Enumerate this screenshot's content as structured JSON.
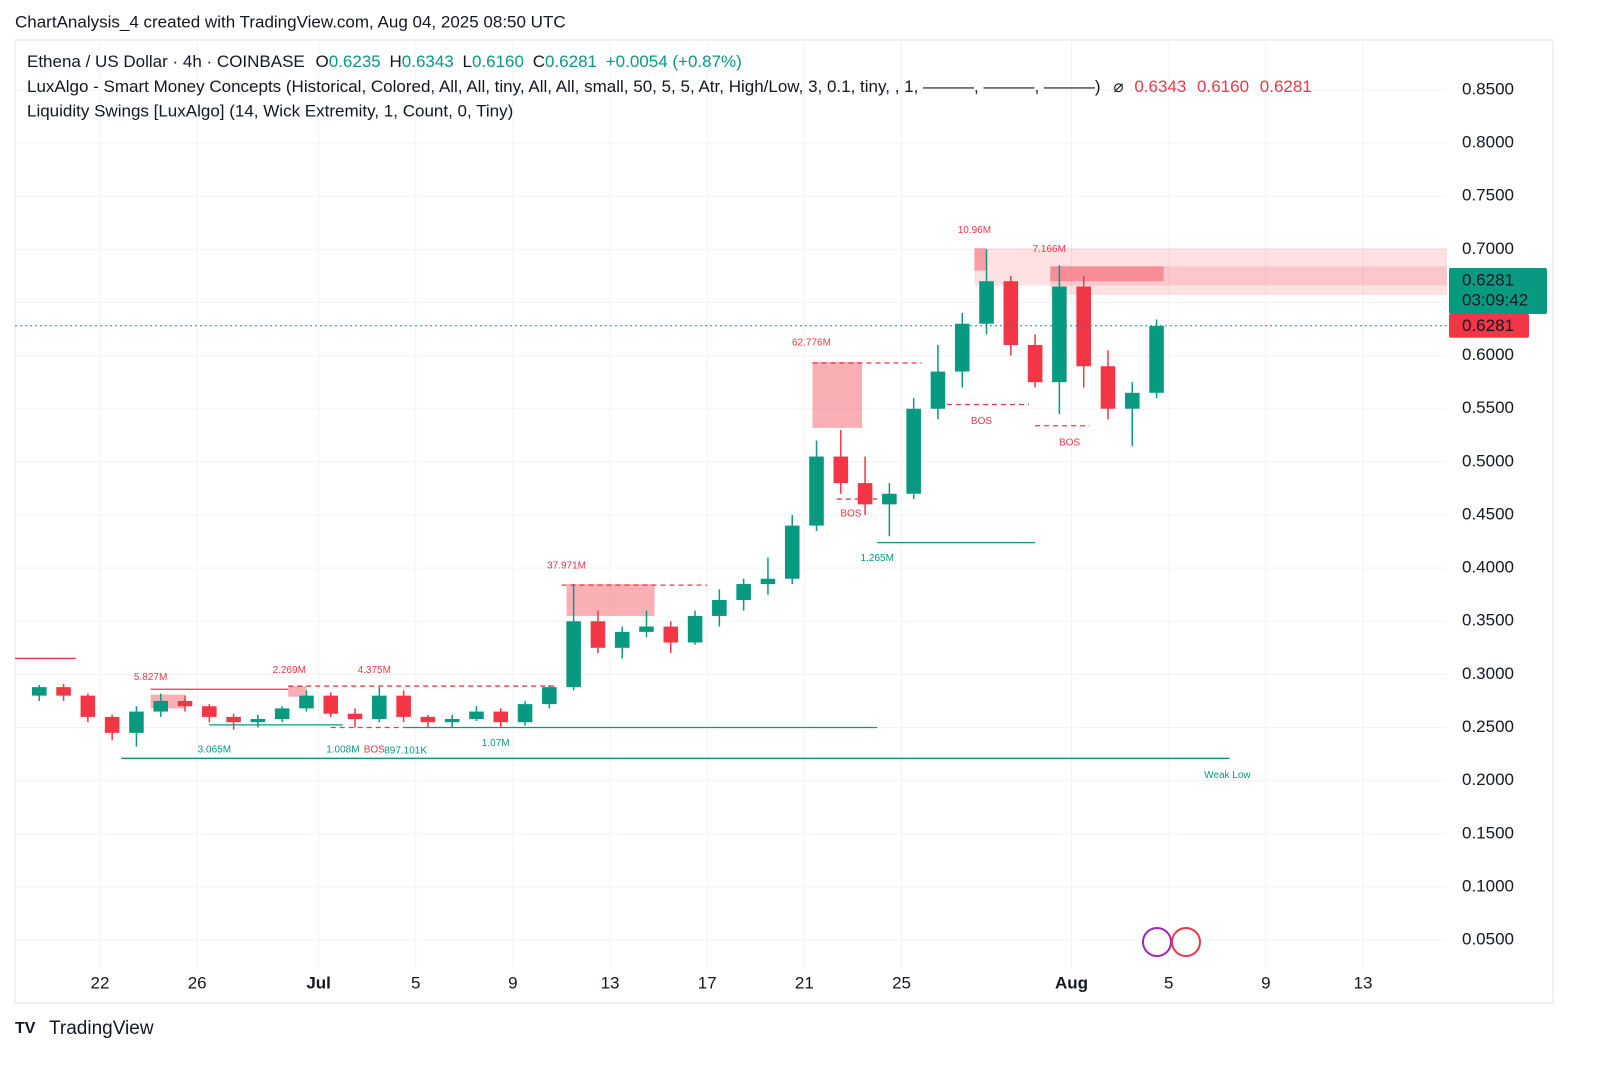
{
  "header": {
    "title": "ChartAnalysis_4 created with TradingView.com, Aug 04, 2025 08:50 UTC",
    "symbol": "Ethena / US Dollar · 4h · COINBASE",
    "ohlc": [
      {
        "label": "O",
        "value": "0.6235"
      },
      {
        "label": "H",
        "value": "0.6343"
      },
      {
        "label": "L",
        "value": "0.6160"
      },
      {
        "label": "C",
        "value": "0.6281"
      }
    ],
    "change": "+0.0054 (+0.87%)",
    "indicator_1": "LuxAlgo - Smart Money Concepts (Historical, Colored, All, All, tiny, All, All, small, 50, 5, 5, Atr, High/Low, 3, 0.1, tiny, , 1, ———, ———, ———)",
    "indicator_1_symbol": "⌀",
    "indicator_1_values": [
      "0.6343",
      "0.6160",
      "0.6281"
    ],
    "indicator_2": "Liquidity Swings [LuxAlgo] (14, Wick Extremity, 1, Count, 0, Tiny)",
    "footer": "TradingView"
  },
  "chart_data": {
    "type": "candlestick",
    "x": [
      "2025-06-19",
      "2025-06-20",
      "2025-06-21",
      "2025-06-22",
      "2025-06-23",
      "2025-06-24",
      "2025-06-25",
      "2025-06-26",
      "2025-06-27",
      "2025-06-28",
      "2025-06-29",
      "2025-06-30",
      "2025-07-01",
      "2025-07-02",
      "2025-07-03",
      "2025-07-04",
      "2025-07-05",
      "2025-07-06",
      "2025-07-07",
      "2025-07-08",
      "2025-07-09",
      "2025-07-10",
      "2025-07-11",
      "2025-07-12",
      "2025-07-13",
      "2025-07-14",
      "2025-07-15",
      "2025-07-16",
      "2025-07-17",
      "2025-07-18",
      "2025-07-19",
      "2025-07-20",
      "2025-07-21",
      "2025-07-22",
      "2025-07-23",
      "2025-07-24",
      "2025-07-25",
      "2025-07-26",
      "2025-07-27",
      "2025-07-28",
      "2025-07-29",
      "2025-07-30",
      "2025-07-31",
      "2025-08-01",
      "2025-08-02",
      "2025-08-03",
      "2025-08-04"
    ],
    "open": [
      0.28,
      0.288,
      0.28,
      0.26,
      0.245,
      0.265,
      0.275,
      0.27,
      0.26,
      0.255,
      0.258,
      0.268,
      0.28,
      0.263,
      0.258,
      0.28,
      0.26,
      0.255,
      0.258,
      0.265,
      0.255,
      0.272,
      0.288,
      0.35,
      0.325,
      0.34,
      0.345,
      0.33,
      0.355,
      0.37,
      0.385,
      0.39,
      0.44,
      0.505,
      0.48,
      0.46,
      0.47,
      0.55,
      0.585,
      0.63,
      0.67,
      0.61,
      0.575,
      0.665,
      0.59,
      0.55,
      0.565
    ],
    "high": [
      0.29,
      0.291,
      0.282,
      0.262,
      0.27,
      0.282,
      0.28,
      0.272,
      0.263,
      0.262,
      0.27,
      0.285,
      0.283,
      0.268,
      0.288,
      0.285,
      0.262,
      0.262,
      0.27,
      0.268,
      0.275,
      0.29,
      0.385,
      0.36,
      0.345,
      0.36,
      0.35,
      0.36,
      0.38,
      0.39,
      0.41,
      0.45,
      0.52,
      0.53,
      0.505,
      0.48,
      0.56,
      0.61,
      0.64,
      0.7,
      0.675,
      0.62,
      0.685,
      0.675,
      0.605,
      0.575,
      0.634
    ],
    "low": [
      0.275,
      0.275,
      0.255,
      0.238,
      0.232,
      0.26,
      0.265,
      0.255,
      0.248,
      0.25,
      0.255,
      0.265,
      0.26,
      0.25,
      0.255,
      0.255,
      0.25,
      0.25,
      0.256,
      0.25,
      0.252,
      0.268,
      0.285,
      0.32,
      0.315,
      0.335,
      0.32,
      0.328,
      0.345,
      0.36,
      0.375,
      0.385,
      0.435,
      0.47,
      0.45,
      0.43,
      0.465,
      0.54,
      0.57,
      0.62,
      0.6,
      0.57,
      0.545,
      0.57,
      0.54,
      0.515,
      0.56
    ],
    "close": [
      0.288,
      0.28,
      0.26,
      0.245,
      0.265,
      0.275,
      0.27,
      0.26,
      0.255,
      0.258,
      0.268,
      0.28,
      0.263,
      0.258,
      0.28,
      0.26,
      0.255,
      0.258,
      0.265,
      0.255,
      0.272,
      0.288,
      0.35,
      0.325,
      0.34,
      0.345,
      0.33,
      0.355,
      0.37,
      0.385,
      0.39,
      0.44,
      0.505,
      0.48,
      0.46,
      0.47,
      0.55,
      0.585,
      0.63,
      0.67,
      0.61,
      0.575,
      0.665,
      0.59,
      0.55,
      0.565,
      0.628
    ],
    "up_color": "#089981",
    "down_color": "#f23645",
    "xlim": [
      "2025-06-18T12:00",
      "2025-08-16T11:00"
    ],
    "xticks": [
      {
        "value": "2025-06-22",
        "label": "22"
      },
      {
        "value": "2025-06-26",
        "label": "26"
      },
      {
        "value": "2025-07-01",
        "label": "Jul"
      },
      {
        "value": "2025-07-05",
        "label": "5"
      },
      {
        "value": "2025-07-09",
        "label": "9"
      },
      {
        "value": "2025-07-13",
        "label": "13"
      },
      {
        "value": "2025-07-17",
        "label": "17"
      },
      {
        "value": "2025-07-21",
        "label": "21"
      },
      {
        "value": "2025-07-25",
        "label": "25"
      },
      {
        "value": "2025-08-01",
        "label": "Aug"
      },
      {
        "value": "2025-08-05",
        "label": "5"
      },
      {
        "value": "2025-08-09",
        "label": "9"
      },
      {
        "value": "2025-08-13",
        "label": "13"
      }
    ],
    "ylim": [
      0.0218,
      0.897
    ],
    "yticks": [
      {
        "value": 0.05,
        "label": "0.0500"
      },
      {
        "value": 0.1,
        "label": "0.1000"
      },
      {
        "value": 0.15,
        "label": "0.1500"
      },
      {
        "value": 0.2,
        "label": "0.2000"
      },
      {
        "value": 0.25,
        "label": "0.2500"
      },
      {
        "value": 0.3,
        "label": "0.3000"
      },
      {
        "value": 0.35,
        "label": "0.3500"
      },
      {
        "value": 0.4,
        "label": "0.4000"
      },
      {
        "value": 0.45,
        "label": "0.4500"
      },
      {
        "value": 0.5,
        "label": "0.5000"
      },
      {
        "value": 0.55,
        "label": "0.5500"
      },
      {
        "value": 0.6,
        "label": "0.6000"
      },
      {
        "value": 0.65,
        "label": "0.6500"
      },
      {
        "value": 0.7,
        "label": "0.7000"
      },
      {
        "value": 0.75,
        "label": "0.7500"
      },
      {
        "value": 0.8,
        "label": "0.8000"
      },
      {
        "value": 0.85,
        "label": "0.8500"
      }
    ],
    "grid": true,
    "last_price": 0.6281,
    "countdown": "03:09:42",
    "zones": [
      {
        "x0": "2025-06-24T02:00",
        "x1": "2025-06-25T12:00",
        "top": 0.281,
        "bottom": 0.268,
        "color": "rgba(242,54,69,0.4)"
      },
      {
        "x0": "2025-06-29T18:00",
        "x1": "2025-06-30T12:00",
        "top": 0.289,
        "bottom": 0.279,
        "color": "rgba(242,54,69,0.4)"
      },
      {
        "x0": "2025-07-11T05:00",
        "x1": "2025-07-14T20:00",
        "top": 0.385,
        "bottom": 0.355,
        "color": "rgba(242,54,69,0.4)"
      },
      {
        "x0": "2025-07-21T08:00",
        "x1": "2025-07-23T09:00",
        "top": 0.594,
        "bottom": 0.532,
        "color": "rgba(242,54,69,0.4)"
      },
      {
        "x0": "2025-07-28T00:00",
        "x1": "2025-08-16T11:00",
        "top": 0.701,
        "bottom": 0.666,
        "color": "rgba(242,54,69,0.15)"
      },
      {
        "x0": "2025-07-31T03:00",
        "x1": "2025-08-16T11:00",
        "top": 0.684,
        "bottom": 0.657,
        "color": "rgba(242,54,69,0.15)"
      },
      {
        "x0": "2025-07-28T00:00",
        "x1": "2025-07-28T12:00",
        "top": 0.701,
        "bottom": 0.68,
        "color": "rgba(242,54,69,0.4)"
      },
      {
        "x0": "2025-07-31T03:00",
        "x1": "2025-08-04T19:00",
        "top": 0.684,
        "bottom": 0.67,
        "color": "rgba(242,54,69,0.4)"
      }
    ],
    "levels": [
      {
        "x0": "2025-06-22T21:00",
        "x1": "2025-08-07T12:00",
        "price": 0.221,
        "color": "#089981",
        "dash": false
      },
      {
        "x0": "2025-07-04T15:00",
        "x1": "2025-07-24T00:00",
        "price": 0.25,
        "color": "#089981",
        "dash": false
      },
      {
        "x0": "2025-07-24T00:00",
        "x1": "2025-07-30T12:00",
        "price": 0.424,
        "color": "#089981",
        "dash": false
      },
      {
        "x0": "2025-06-26T12:00",
        "x1": "2025-07-02T00:00",
        "price": 0.2525,
        "color": "#089981",
        "dash": false
      },
      {
        "x0": "2025-06-18T12:00",
        "x1": "2025-06-21T00:00",
        "price": 0.315,
        "color": "#f23645",
        "dash": false
      },
      {
        "x0": "2025-06-24T02:00",
        "x1": "2025-06-29T18:00",
        "price": 0.286,
        "color": "#f23645",
        "dash": false
      },
      {
        "x0": "2025-06-29T18:00",
        "x1": "2025-07-10T18:00",
        "price": 0.289,
        "color": "#f23645",
        "dash": true
      },
      {
        "x0": "2025-07-11T00:00",
        "x1": "2025-07-17T00:00",
        "price": 0.384,
        "color": "#f23645",
        "dash": true
      },
      {
        "x0": "2025-07-21T08:00",
        "x1": "2025-07-25T20:00",
        "price": 0.593,
        "color": "#f23645",
        "dash": true
      },
      {
        "x0": "2025-07-22T08:00",
        "x1": "2025-07-24T00:00",
        "price": 0.465,
        "color": "#f23645",
        "dash": true
      },
      {
        "x0": "2025-07-26T12:00",
        "x1": "2025-07-30T06:00",
        "price": 0.554,
        "color": "#f23645",
        "dash": true
      },
      {
        "x0": "2025-07-30T12:00",
        "x1": "2025-08-01T18:00",
        "price": 0.534,
        "color": "#f23645",
        "dash": true
      },
      {
        "x0": "2025-07-01T12:00",
        "x1": "2025-07-04T15:00",
        "price": 0.25,
        "color": "#f23645",
        "dash": true
      }
    ],
    "annotations": [
      {
        "text": "5.827M",
        "x": "2025-06-24T02:00",
        "y": 0.297,
        "color": "#f23645"
      },
      {
        "text": "2.269M",
        "x": "2025-06-29T19:00",
        "y": 0.304,
        "color": "#f23645"
      },
      {
        "text": "4.375M",
        "x": "2025-07-03T07:00",
        "y": 0.304,
        "color": "#f23645"
      },
      {
        "text": "37.971M",
        "x": "2025-07-11T05:00",
        "y": 0.402,
        "color": "#f23645"
      },
      {
        "text": "62.776M",
        "x": "2025-07-21T07:00",
        "y": 0.612,
        "color": "#f23645"
      },
      {
        "text": "10.96M",
        "x": "2025-07-28T00:00",
        "y": 0.718,
        "color": "#f23645"
      },
      {
        "text": "7.166M",
        "x": "2025-07-31T02:00",
        "y": 0.7,
        "color": "#f23645"
      },
      {
        "text": "3.065M",
        "x": "2025-06-26T17:00",
        "y": 0.229,
        "color": "#089981"
      },
      {
        "text": "1.008M",
        "x": "2025-07-02T00:00",
        "y": 0.229,
        "color": "#089981"
      },
      {
        "text": "BOS",
        "x": "2025-07-03T07:00",
        "y": 0.229,
        "color": "#f23645"
      },
      {
        "text": "897.101K",
        "x": "2025-07-04T14:00",
        "y": 0.228,
        "color": "#089981"
      },
      {
        "text": "1.07M",
        "x": "2025-07-08T07:00",
        "y": 0.235,
        "color": "#089981"
      },
      {
        "text": "1.265M",
        "x": "2025-07-24T00:00",
        "y": 0.409,
        "color": "#089981"
      },
      {
        "text": "BOS",
        "x": "2025-07-22T22:00",
        "y": 0.451,
        "color": "#f23645"
      },
      {
        "text": "BOS",
        "x": "2025-07-28T07:00",
        "y": 0.538,
        "color": "#f23645"
      },
      {
        "text": "BOS",
        "x": "2025-07-31T22:00",
        "y": 0.518,
        "color": "#f23645"
      },
      {
        "text": "Weak Low",
        "x": "2025-08-07T10:00",
        "y": 0.205,
        "color": "#089981"
      }
    ]
  }
}
